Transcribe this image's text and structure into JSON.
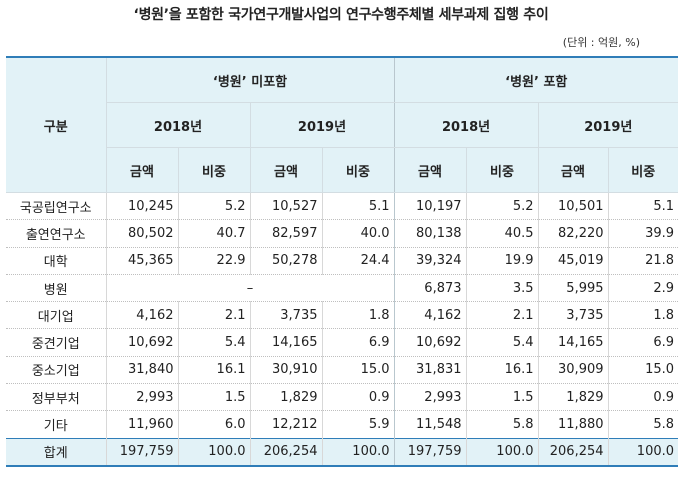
{
  "title": "‘병원’을 포함한 국가연구개발사업의 연구수행주체별 세부과제 집행 추이",
  "unit": "(단위 : 억원, %)",
  "header": {
    "gubun": "구분",
    "group1": "‘병원’ 미포함",
    "group2": "‘병원’ 포함",
    "year1": "2018년",
    "year2": "2019년",
    "amount": "금액",
    "share": "비중"
  },
  "rows": [
    {
      "label": "국공립연구소",
      "c": [
        "10,245",
        "5.2",
        "10,527",
        "5.1",
        "10,197",
        "5.2",
        "10,501",
        "5.1"
      ]
    },
    {
      "label": "출연연구소",
      "c": [
        "80,502",
        "40.7",
        "82,597",
        "40.0",
        "80,138",
        "40.5",
        "82,220",
        "39.9"
      ]
    },
    {
      "label": "대학",
      "c": [
        "45,365",
        "22.9",
        "50,278",
        "24.4",
        "39,324",
        "19.9",
        "45,019",
        "21.8"
      ]
    },
    {
      "label": "병원",
      "dash": "–",
      "c": [
        "6,873",
        "3.5",
        "5,995",
        "2.9"
      ]
    },
    {
      "label": "대기업",
      "c": [
        "4,162",
        "2.1",
        "3,735",
        "1.8",
        "4,162",
        "2.1",
        "3,735",
        "1.8"
      ]
    },
    {
      "label": "중견기업",
      "c": [
        "10,692",
        "5.4",
        "14,165",
        "6.9",
        "10,692",
        "5.4",
        "14,165",
        "6.9"
      ]
    },
    {
      "label": "중소기업",
      "c": [
        "31,840",
        "16.1",
        "30,910",
        "15.0",
        "31,831",
        "16.1",
        "30,909",
        "15.0"
      ]
    },
    {
      "label": "정부부처",
      "c": [
        "2,993",
        "1.5",
        "1,829",
        "0.9",
        "2,993",
        "1.5",
        "1,829",
        "0.9"
      ]
    },
    {
      "label": "기타",
      "c": [
        "11,960",
        "6.0",
        "12,212",
        "5.9",
        "11,548",
        "5.8",
        "11,880",
        "5.8"
      ]
    }
  ],
  "total": {
    "label": "합계",
    "c": [
      "197,759",
      "100.0",
      "206,254",
      "100.0",
      "197,759",
      "100.0",
      "206,254",
      "100.0"
    ]
  },
  "colors": {
    "header_bg": "#e2f2f7",
    "rule": "#2f7db8"
  }
}
